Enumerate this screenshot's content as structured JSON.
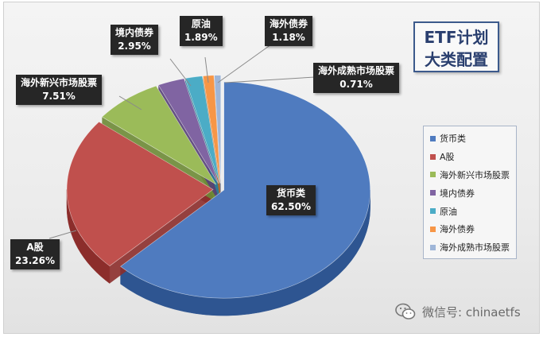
{
  "chart_data": {
    "type": "pie",
    "style": "3d-exploded",
    "title_line1": "ETF计划",
    "title_line2": "大类配置",
    "slices": [
      {
        "name": "货币类",
        "value": 62.5,
        "label": "62.50%",
        "color": "#4f7bbf",
        "dark": "#2e5591"
      },
      {
        "name": "A股",
        "value": 23.26,
        "label": "23.26%",
        "color": "#c0504d",
        "dark": "#8c2d2b"
      },
      {
        "name": "海外新兴市场股票",
        "value": 7.51,
        "label": "7.51%",
        "color": "#9bbb59",
        "dark": "#6d8a35"
      },
      {
        "name": "境内债券",
        "value": 2.95,
        "label": "2.95%",
        "color": "#8064a2",
        "dark": "#553f77"
      },
      {
        "name": "原油",
        "value": 1.89,
        "label": "1.89%",
        "color": "#4bacc6",
        "dark": "#2c7f97"
      },
      {
        "name": "海外债券",
        "value": 1.18,
        "label": "1.18%",
        "color": "#f79646",
        "dark": "#bb6420"
      },
      {
        "name": "海外成熟市场股票",
        "value": 0.71,
        "label": "0.71%",
        "color": "#9fb6d8",
        "dark": "#6f86a8"
      }
    ],
    "legend_placement": "right"
  },
  "watermark": {
    "text": "微信号: chinaetfs",
    "icon": "wechat-icon"
  }
}
